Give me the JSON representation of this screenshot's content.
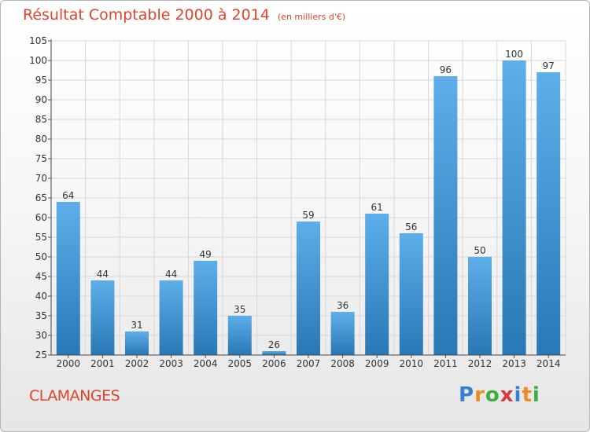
{
  "title": "Résultat Comptable 2000 à 2014",
  "subtitle": "(en milliers d'€)",
  "commune": "CLAMANGES",
  "logo": {
    "text": "Proxiti",
    "letters": [
      "P",
      "r",
      "o",
      "x",
      "i",
      "t",
      "i"
    ],
    "colors": [
      "#3a7fd0",
      "#f08a1e",
      "#3fae3f",
      "#d83a3a",
      "#3a7fd0",
      "#f08a1e",
      "#3fae3f"
    ]
  },
  "colors": {
    "title": "#e0442a",
    "bar_top": "#5eaeea",
    "bar_bottom": "#2978b5",
    "grid": "#d8d8d8"
  },
  "chart_data": {
    "type": "bar",
    "categories": [
      "2000",
      "2001",
      "2002",
      "2003",
      "2004",
      "2005",
      "2006",
      "2007",
      "2008",
      "2009",
      "2010",
      "2011",
      "2012",
      "2013",
      "2014"
    ],
    "values": [
      64,
      44,
      31,
      44,
      49,
      35,
      26,
      59,
      36,
      61,
      56,
      96,
      50,
      100,
      97
    ],
    "ylim": [
      25,
      105
    ],
    "yticks": [
      25,
      30,
      35,
      40,
      45,
      50,
      55,
      60,
      65,
      70,
      75,
      80,
      85,
      90,
      95,
      100,
      105
    ],
    "grid": true,
    "data_labels": true
  }
}
